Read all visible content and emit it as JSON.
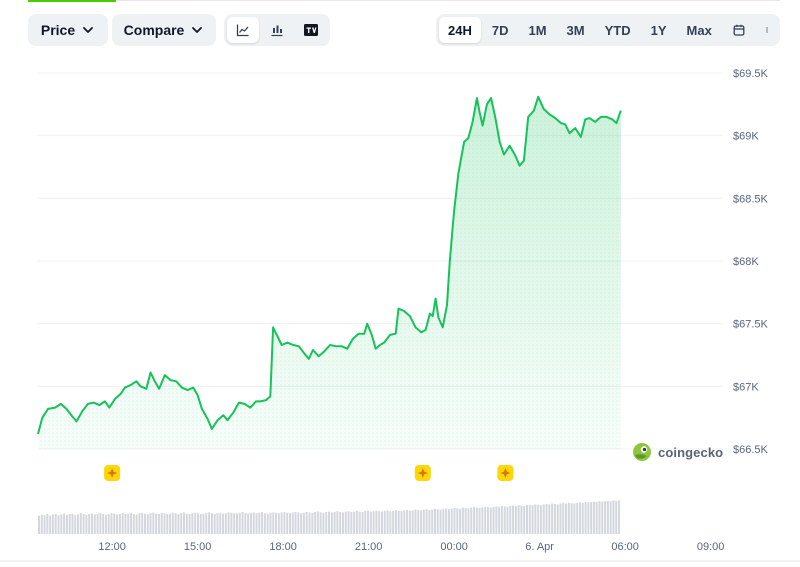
{
  "toolbar": {
    "price_label": "Price",
    "compare_label": "Compare",
    "chart_types": [
      {
        "icon": "line-chart-icon",
        "active": true
      },
      {
        "icon": "candlestick-chart-icon",
        "active": false
      },
      {
        "icon": "tradingview-icon",
        "active": false
      }
    ],
    "ranges": [
      {
        "label": "24H",
        "active": true
      },
      {
        "label": "7D",
        "active": false
      },
      {
        "label": "1M",
        "active": false
      },
      {
        "label": "3M",
        "active": false
      },
      {
        "label": "YTD",
        "active": false
      },
      {
        "label": "1Y",
        "active": false
      },
      {
        "label": "Max",
        "active": false
      }
    ],
    "calendar_icon": "calendar-icon",
    "more_icon": "more-vertical-icon"
  },
  "brand": {
    "name": "coingecko",
    "logo_icon": "gecko-logo-icon"
  },
  "colors": {
    "line": "#16c25a",
    "area": "#16c25a",
    "accent": "#4bcc00",
    "marker": "#ffd60a",
    "volume": "#d4d8de"
  },
  "chart_data": {
    "type": "area",
    "x_ticks": [
      {
        "label": "12:00",
        "h": 2.6
      },
      {
        "label": "15:00",
        "h": 5.6
      },
      {
        "label": "18:00",
        "h": 8.6
      },
      {
        "label": "21:00",
        "h": 11.6
      },
      {
        "label": "00:00",
        "h": 14.6
      },
      {
        "label": "6. Apr",
        "h": 17.6
      },
      {
        "label": "06:00",
        "h": 20.6
      },
      {
        "label": "09:00",
        "h": 23.6
      }
    ],
    "y_ticks": [
      {
        "label": "$66.5K",
        "value": 66500
      },
      {
        "label": "$67K",
        "value": 67000
      },
      {
        "label": "$67.5K",
        "value": 67500
      },
      {
        "label": "$68K",
        "value": 68000
      },
      {
        "label": "$68.5K",
        "value": 68500
      },
      {
        "label": "$69K",
        "value": 69000
      },
      {
        "label": "$69.5K",
        "value": 69500
      }
    ],
    "ylim": [
      66500,
      69500
    ],
    "xlim": [
      0,
      24
    ],
    "series": [
      {
        "points": [
          [
            0.0,
            66620
          ],
          [
            0.15,
            66750
          ],
          [
            0.35,
            66820
          ],
          [
            0.6,
            66830
          ],
          [
            0.8,
            66860
          ],
          [
            1.0,
            66820
          ],
          [
            1.2,
            66760
          ],
          [
            1.35,
            66720
          ],
          [
            1.55,
            66800
          ],
          [
            1.75,
            66860
          ],
          [
            1.95,
            66870
          ],
          [
            2.15,
            66850
          ],
          [
            2.35,
            66880
          ],
          [
            2.5,
            66830
          ],
          [
            2.7,
            66900
          ],
          [
            2.9,
            66940
          ],
          [
            3.05,
            66990
          ],
          [
            3.25,
            67010
          ],
          [
            3.45,
            67040
          ],
          [
            3.6,
            67000
          ],
          [
            3.8,
            66980
          ],
          [
            3.95,
            67110
          ],
          [
            4.1,
            67040
          ],
          [
            4.25,
            66980
          ],
          [
            4.45,
            67090
          ],
          [
            4.65,
            67050
          ],
          [
            4.85,
            67040
          ],
          [
            5.05,
            66990
          ],
          [
            5.25,
            66970
          ],
          [
            5.45,
            66990
          ],
          [
            5.6,
            66930
          ],
          [
            5.75,
            66820
          ],
          [
            5.95,
            66740
          ],
          [
            6.1,
            66660
          ],
          [
            6.3,
            66730
          ],
          [
            6.5,
            66770
          ],
          [
            6.65,
            66730
          ],
          [
            6.85,
            66790
          ],
          [
            7.05,
            66870
          ],
          [
            7.25,
            66860
          ],
          [
            7.45,
            66830
          ],
          [
            7.65,
            66880
          ],
          [
            7.8,
            66880
          ],
          [
            8.0,
            66890
          ],
          [
            8.15,
            66920
          ],
          [
            8.25,
            67470
          ],
          [
            8.4,
            67400
          ],
          [
            8.55,
            67330
          ],
          [
            8.75,
            67350
          ],
          [
            8.95,
            67330
          ],
          [
            9.15,
            67320
          ],
          [
            9.35,
            67260
          ],
          [
            9.5,
            67220
          ],
          [
            9.65,
            67290
          ],
          [
            9.85,
            67240
          ],
          [
            10.05,
            67280
          ],
          [
            10.25,
            67330
          ],
          [
            10.45,
            67320
          ],
          [
            10.65,
            67320
          ],
          [
            10.85,
            67300
          ],
          [
            11.05,
            67380
          ],
          [
            11.25,
            67420
          ],
          [
            11.45,
            67420
          ],
          [
            11.55,
            67500
          ],
          [
            11.7,
            67420
          ],
          [
            11.85,
            67300
          ],
          [
            12.0,
            67330
          ],
          [
            12.15,
            67350
          ],
          [
            12.35,
            67410
          ],
          [
            12.55,
            67420
          ],
          [
            12.65,
            67620
          ],
          [
            12.85,
            67600
          ],
          [
            13.05,
            67560
          ],
          [
            13.25,
            67470
          ],
          [
            13.45,
            67430
          ],
          [
            13.6,
            67450
          ],
          [
            13.75,
            67580
          ],
          [
            13.85,
            67560
          ],
          [
            13.95,
            67700
          ],
          [
            14.05,
            67550
          ],
          [
            14.2,
            67470
          ],
          [
            14.35,
            67650
          ],
          [
            14.45,
            68000
          ],
          [
            14.6,
            68400
          ],
          [
            14.75,
            68700
          ],
          [
            14.95,
            68950
          ],
          [
            15.1,
            68980
          ],
          [
            15.25,
            69110
          ],
          [
            15.4,
            69300
          ],
          [
            15.5,
            69180
          ],
          [
            15.6,
            69080
          ],
          [
            15.75,
            69250
          ],
          [
            15.9,
            69300
          ],
          [
            16.05,
            69140
          ],
          [
            16.2,
            68950
          ],
          [
            16.35,
            68850
          ],
          [
            16.55,
            68920
          ],
          [
            16.75,
            68840
          ],
          [
            16.9,
            68760
          ],
          [
            17.05,
            68800
          ],
          [
            17.2,
            69150
          ],
          [
            17.4,
            69200
          ],
          [
            17.55,
            69310
          ],
          [
            17.75,
            69210
          ],
          [
            17.95,
            69170
          ],
          [
            18.15,
            69140
          ],
          [
            18.35,
            69100
          ],
          [
            18.5,
            69090
          ],
          [
            18.65,
            69020
          ],
          [
            18.85,
            69060
          ],
          [
            19.05,
            68990
          ],
          [
            19.2,
            69130
          ],
          [
            19.35,
            69140
          ],
          [
            19.55,
            69110
          ],
          [
            19.75,
            69150
          ],
          [
            19.95,
            69150
          ],
          [
            20.15,
            69130
          ],
          [
            20.3,
            69100
          ],
          [
            20.45,
            69200
          ]
        ]
      }
    ],
    "markers": [
      {
        "h": 2.6
      },
      {
        "h": 13.5
      },
      {
        "h": 16.4
      }
    ],
    "volume": [
      0.46,
      0.48,
      0.47,
      0.5,
      0.46,
      0.49,
      0.5,
      0.47,
      0.49,
      0.51,
      0.48,
      0.5,
      0.5,
      0.47,
      0.49,
      0.52,
      0.5,
      0.48,
      0.5,
      0.51,
      0.49,
      0.5,
      0.53,
      0.5,
      0.48,
      0.5,
      0.52,
      0.51,
      0.49,
      0.5,
      0.53,
      0.5,
      0.51,
      0.52,
      0.5,
      0.49,
      0.52,
      0.53,
      0.51,
      0.5,
      0.52,
      0.54,
      0.51,
      0.5,
      0.53,
      0.52,
      0.5,
      0.51,
      0.53,
      0.52,
      0.5,
      0.52,
      0.54,
      0.51,
      0.5,
      0.52,
      0.53,
      0.52,
      0.5,
      0.51,
      0.53,
      0.54,
      0.52,
      0.5,
      0.52,
      0.53,
      0.51,
      0.52,
      0.54,
      0.53,
      0.52,
      0.51,
      0.53,
      0.55,
      0.52,
      0.51,
      0.53,
      0.54,
      0.52,
      0.53,
      0.55,
      0.52,
      0.51,
      0.53,
      0.54,
      0.53,
      0.52,
      0.54,
      0.55,
      0.53,
      0.52,
      0.54,
      0.55,
      0.54,
      0.52,
      0.53,
      0.55,
      0.54,
      0.53,
      0.55,
      0.56,
      0.54,
      0.53,
      0.55,
      0.56,
      0.54,
      0.55,
      0.57,
      0.55,
      0.54,
      0.56,
      0.57,
      0.55,
      0.56,
      0.58,
      0.56,
      0.55,
      0.57,
      0.58,
      0.56,
      0.57,
      0.58,
      0.57,
      0.56,
      0.58,
      0.59,
      0.57,
      0.58,
      0.6,
      0.58,
      0.57,
      0.59,
      0.6,
      0.58,
      0.59,
      0.61,
      0.6,
      0.59,
      0.61,
      0.62,
      0.6,
      0.61,
      0.63,
      0.62,
      0.61,
      0.63,
      0.64,
      0.62,
      0.63,
      0.65,
      0.64,
      0.63,
      0.66,
      0.65,
      0.64,
      0.66,
      0.67,
      0.66,
      0.65,
      0.67,
      0.68,
      0.67,
      0.66,
      0.68,
      0.69,
      0.68,
      0.7,
      0.69,
      0.68,
      0.7,
      0.71,
      0.7,
      0.72,
      0.71,
      0.7,
      0.72,
      0.73,
      0.72,
      0.74,
      0.73,
      0.72,
      0.74,
      0.75,
      0.74,
      0.76,
      0.75,
      0.74,
      0.76,
      0.77,
      0.76,
      0.78,
      0.77,
      0.76,
      0.78,
      0.79,
      0.78,
      0.8,
      0.79,
      0.8,
      0.81,
      0.8,
      0.82,
      0.81,
      0.82,
      0.83,
      0.82,
      0.84,
      0.83,
      0.84
    ]
  }
}
